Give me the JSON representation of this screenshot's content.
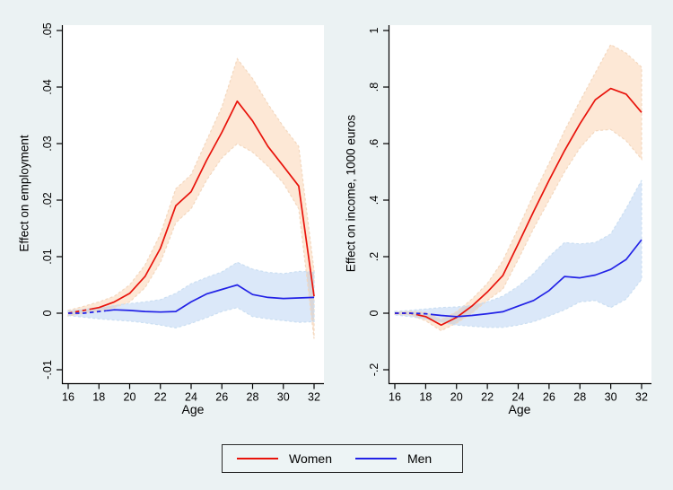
{
  "page": {
    "background": "#ebf2f3",
    "plot_background": "#ffffff",
    "axis_color": "#000000"
  },
  "legend": {
    "entries": [
      {
        "label": "Women",
        "color": "#e8130b"
      },
      {
        "label": "Men",
        "color": "#2222e6"
      }
    ]
  },
  "chart_data": [
    {
      "type": "line",
      "panel": "employment",
      "ylabel": "Effect on employment",
      "xlabel": "Age",
      "x": [
        16,
        17,
        18,
        19,
        20,
        21,
        22,
        23,
        24,
        25,
        26,
        27,
        28,
        29,
        30,
        31,
        32
      ],
      "xticks": [
        "16",
        "18",
        "20",
        "22",
        "24",
        "26",
        "28",
        "30",
        "32"
      ],
      "yticks": [
        {
          "v": 0.05,
          "label": ".05"
        },
        {
          "v": 0.04,
          "label": ".04"
        },
        {
          "v": 0.03,
          "label": ".03"
        },
        {
          "v": 0.02,
          "label": ".02"
        },
        {
          "v": 0.01,
          "label": ".01"
        },
        {
          "v": 0,
          "label": "0"
        },
        {
          "v": -0.01,
          "label": "-.01"
        }
      ],
      "ylim": [
        -0.0125,
        0.051
      ],
      "xlim": [
        16,
        32
      ],
      "grid": false,
      "series": [
        {
          "name": "Women",
          "color": "#e8130b",
          "dash_until": 17.5,
          "values": [
            0,
            0.0005,
            0.001,
            0.002,
            0.0035,
            0.0065,
            0.0115,
            0.019,
            0.0215,
            0.027,
            0.032,
            0.0375,
            0.034,
            0.0295,
            0.026,
            0.0225,
            0.003
          ],
          "ci_upper": [
            0.0005,
            0.0012,
            0.002,
            0.003,
            0.005,
            0.0085,
            0.014,
            0.022,
            0.0245,
            0.0305,
            0.0365,
            0.045,
            0.0415,
            0.037,
            0.033,
            0.0295,
            0.0075
          ],
          "ci_lower": [
            -0.0005,
            0,
            0.0004,
            0.001,
            0.002,
            0.0045,
            0.009,
            0.016,
            0.0185,
            0.0235,
            0.0275,
            0.03,
            0.0285,
            0.026,
            0.023,
            0.0185,
            -0.0045
          ],
          "band_fill": "rgba(246,152,70,0.22)",
          "band_edge": "#f3d8bf"
        },
        {
          "name": "Men",
          "color": "#2222e6",
          "dash_until": 18.5,
          "values": [
            0,
            0,
            0.0003,
            0.0006,
            0.0005,
            0.0003,
            0.0002,
            0.0003,
            0.002,
            0.0034,
            0.0042,
            0.005,
            0.0033,
            0.0028,
            0.0026,
            0.0027,
            0.0028
          ],
          "ci_upper": [
            0.0004,
            0.0007,
            0.001,
            0.0014,
            0.0017,
            0.002,
            0.0024,
            0.0035,
            0.0052,
            0.0063,
            0.0073,
            0.009,
            0.0078,
            0.0072,
            0.007,
            0.0074,
            0.0073
          ],
          "ci_lower": [
            -0.0004,
            -0.0007,
            -0.001,
            -0.0012,
            -0.0014,
            -0.0017,
            -0.0021,
            -0.0026,
            -0.0018,
            -0.0008,
            0.0003,
            0.001,
            -0.0006,
            -0.001,
            -0.0013,
            -0.0016,
            -0.0015
          ],
          "band_fill": "rgba(110,165,230,0.25)",
          "band_edge": "#cbdff2"
        }
      ]
    },
    {
      "type": "line",
      "panel": "income",
      "ylabel": "Effect on income, 1000 euros",
      "xlabel": "Age",
      "x": [
        16,
        17,
        18,
        19,
        20,
        21,
        22,
        23,
        24,
        25,
        26,
        27,
        28,
        29,
        30,
        31,
        32
      ],
      "xticks": [
        "16",
        "18",
        "20",
        "22",
        "24",
        "26",
        "28",
        "30",
        "32"
      ],
      "yticks": [
        {
          "v": 1,
          "label": "1"
        },
        {
          "v": 0.8,
          "label": ".8"
        },
        {
          "v": 0.6,
          "label": ".6"
        },
        {
          "v": 0.4,
          "label": ".4"
        },
        {
          "v": 0.2,
          "label": ".2"
        },
        {
          "v": 0,
          "label": "0"
        },
        {
          "v": -0.2,
          "label": "-.2"
        }
      ],
      "ylim": [
        -0.25,
        1.02
      ],
      "xlim": [
        16,
        32
      ],
      "grid": false,
      "series": [
        {
          "name": "Women",
          "color": "#e8130b",
          "dash_until": 17.5,
          "values": [
            0,
            0,
            -0.012,
            -0.042,
            -0.015,
            0.025,
            0.075,
            0.133,
            0.245,
            0.36,
            0.47,
            0.575,
            0.67,
            0.755,
            0.795,
            0.775,
            0.71
          ],
          "ci_upper": [
            0.004,
            0.006,
            0.003,
            -0.022,
            0.005,
            0.05,
            0.105,
            0.185,
            0.3,
            0.42,
            0.53,
            0.645,
            0.75,
            0.85,
            0.95,
            0.92,
            0.87
          ],
          "ci_lower": [
            -0.004,
            -0.006,
            -0.027,
            -0.062,
            -0.035,
            0,
            0.045,
            0.085,
            0.19,
            0.3,
            0.4,
            0.5,
            0.585,
            0.645,
            0.65,
            0.61,
            0.545
          ],
          "band_fill": "rgba(246,152,70,0.22)",
          "band_edge": "#f3d8bf"
        },
        {
          "name": "Men",
          "color": "#2222e6",
          "dash_until": 18.5,
          "values": [
            0,
            0,
            -0.002,
            -0.008,
            -0.012,
            -0.008,
            -0.002,
            0.005,
            0.025,
            0.045,
            0.08,
            0.13,
            0.125,
            0.135,
            0.155,
            0.19,
            0.26
          ],
          "ci_upper": [
            0.006,
            0.01,
            0.015,
            0.02,
            0.022,
            0.028,
            0.04,
            0.06,
            0.095,
            0.14,
            0.2,
            0.25,
            0.245,
            0.25,
            0.28,
            0.37,
            0.47
          ],
          "ci_lower": [
            -0.006,
            -0.012,
            -0.02,
            -0.032,
            -0.042,
            -0.046,
            -0.05,
            -0.05,
            -0.042,
            -0.03,
            -0.01,
            0.012,
            0.04,
            0.045,
            0.02,
            0.05,
            0.12
          ],
          "band_fill": "rgba(110,165,230,0.25)",
          "band_edge": "#cbdff2"
        }
      ]
    }
  ]
}
